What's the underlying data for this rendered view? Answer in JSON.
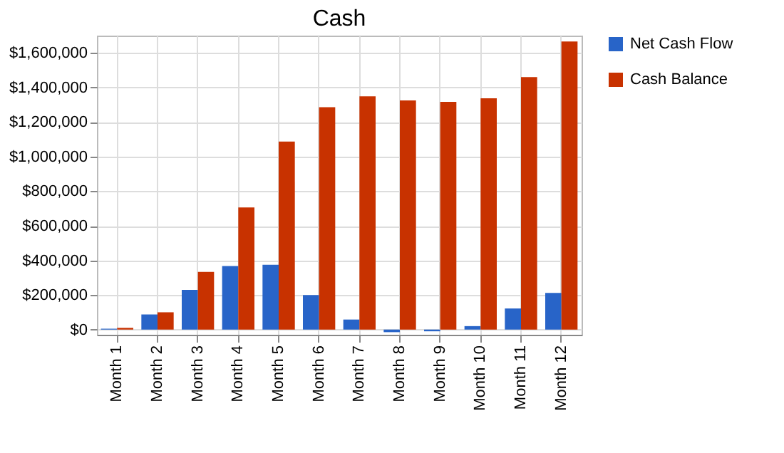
{
  "chart_data": {
    "type": "bar",
    "title": "Cash",
    "categories": [
      "Month 1",
      "Month 2",
      "Month 3",
      "Month 4",
      "Month 5",
      "Month 6",
      "Month 7",
      "Month 8",
      "Month 9",
      "Month 10",
      "Month 11",
      "Month 12"
    ],
    "series": [
      {
        "name": "Net Cash Flow",
        "color": "#2864c8",
        "values": [
          5000,
          87000,
          230000,
          368000,
          375000,
          200000,
          58000,
          -15000,
          -10000,
          20000,
          122000,
          212000
        ]
      },
      {
        "name": "Cash Balance",
        "color": "#c83200",
        "values": [
          10000,
          100000,
          333000,
          706000,
          1087000,
          1286000,
          1349000,
          1325000,
          1317000,
          1338000,
          1460000,
          1666000
        ]
      }
    ],
    "ylim": [
      -30000,
      1700000
    ],
    "yticks": [
      {
        "value": 0,
        "label": "$0"
      },
      {
        "value": 200000,
        "label": "$200,000"
      },
      {
        "value": 400000,
        "label": "$400,000"
      },
      {
        "value": 600000,
        "label": "$600,000"
      },
      {
        "value": 800000,
        "label": "$800,000"
      },
      {
        "value": 1000000,
        "label": "$1,000,000"
      },
      {
        "value": 1200000,
        "label": "$1,200,000"
      },
      {
        "value": 1400000,
        "label": "$1,400,000"
      },
      {
        "value": 1600000,
        "label": "$1,600,000"
      }
    ],
    "grid": true,
    "legend": "right"
  }
}
